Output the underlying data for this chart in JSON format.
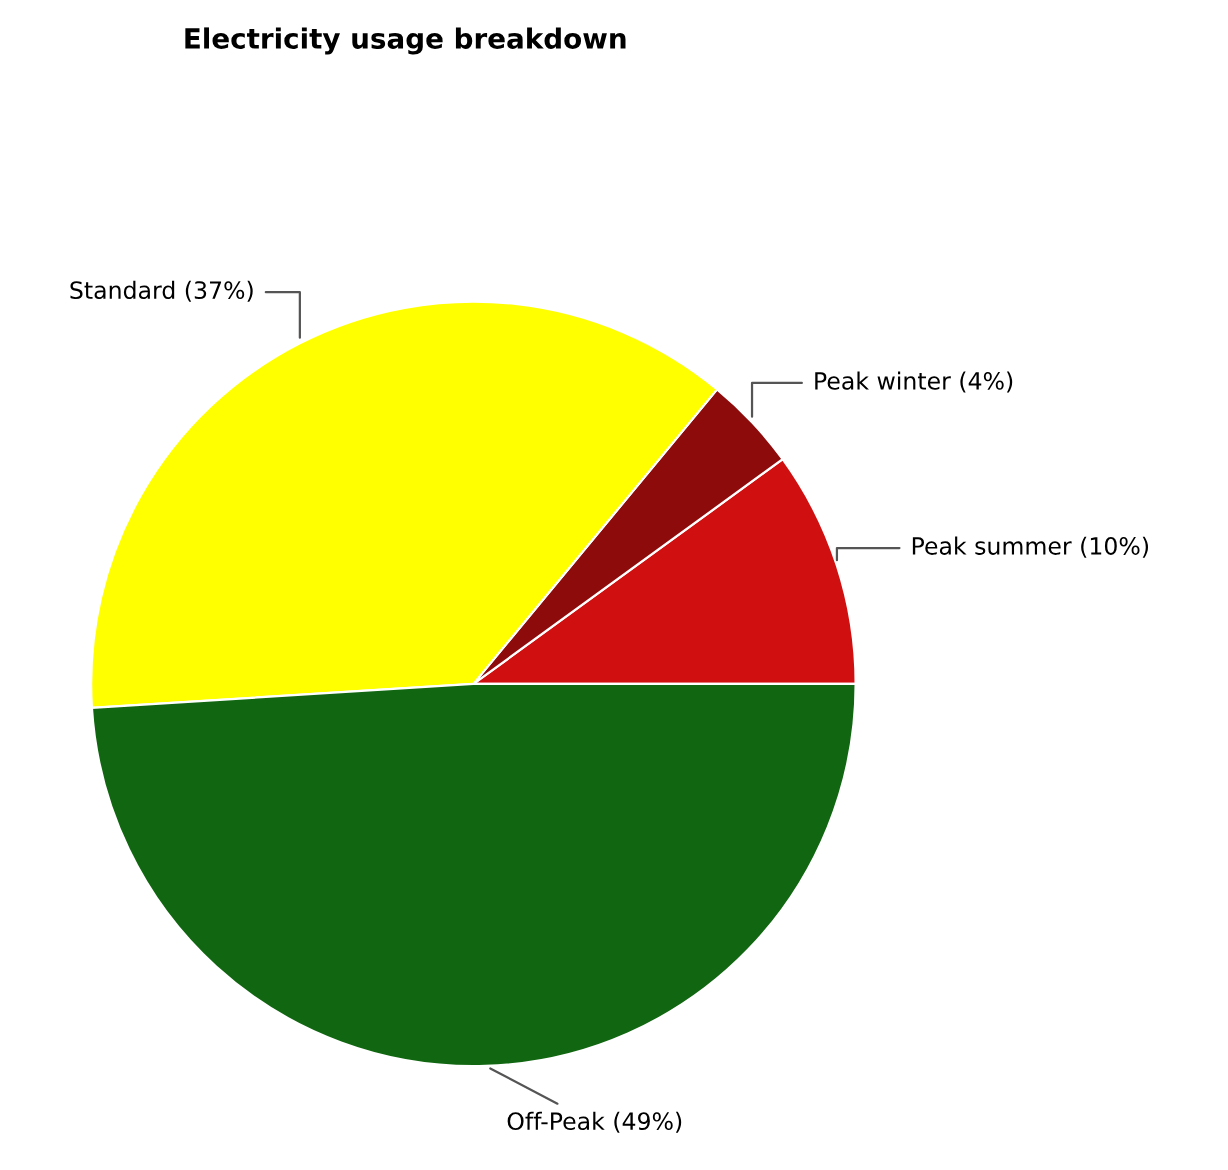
{
  "chart_data": {
    "type": "pie",
    "title": "Electricity usage breakdown",
    "categories": [
      "Peak summer",
      "Peak winter",
      "Standard",
      "Off-Peak"
    ],
    "values": [
      10,
      4,
      37,
      49
    ],
    "value_labels": [
      "(10%)",
      "(4%)",
      "(37%)",
      "(49%)"
    ],
    "colors": [
      "#d01010",
      "#8e0b0b",
      "#ffff00",
      "#116611"
    ],
    "legend": false
  }
}
